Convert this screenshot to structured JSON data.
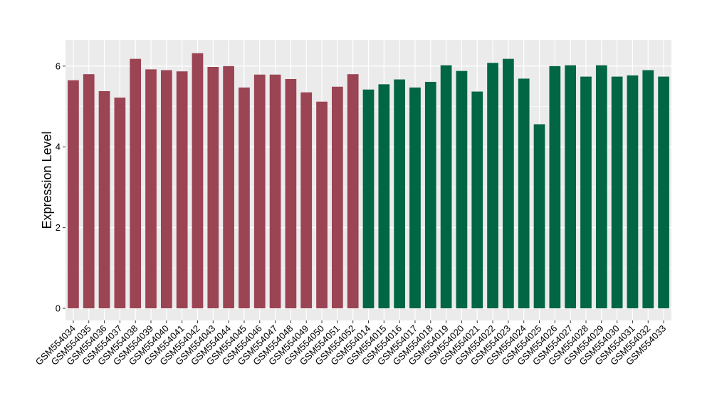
{
  "chart_data": {
    "type": "bar",
    "title": "",
    "xlabel": "",
    "ylabel": "Expression Level",
    "ylim": [
      -0.3,
      6.65
    ],
    "yticks": [
      0,
      2,
      4,
      6
    ],
    "grid": true,
    "legend": "none",
    "colors": {
      "group1": "#9b4453",
      "group2": "#006644",
      "panel_bg": "#ebebeb",
      "grid": "#ffffff"
    },
    "categories": [
      "GSM554034",
      "GSM554035",
      "GSM554036",
      "GSM554037",
      "GSM554038",
      "GSM554039",
      "GSM554040",
      "GSM554041",
      "GSM554042",
      "GSM554043",
      "GSM554044",
      "GSM554045",
      "GSM554046",
      "GSM554047",
      "GSM554048",
      "GSM554049",
      "GSM554050",
      "GSM554051",
      "GSM554052",
      "GSM554014",
      "GSM554015",
      "GSM554016",
      "GSM554017",
      "GSM554018",
      "GSM554019",
      "GSM554020",
      "GSM554021",
      "GSM554022",
      "GSM554023",
      "GSM554024",
      "GSM554025",
      "GSM554026",
      "GSM554027",
      "GSM554028",
      "GSM554029",
      "GSM554030",
      "GSM554031",
      "GSM554032",
      "GSM554033"
    ],
    "values": [
      5.65,
      5.8,
      5.38,
      5.22,
      6.18,
      5.92,
      5.9,
      5.87,
      6.32,
      5.98,
      6.0,
      5.47,
      5.79,
      5.79,
      5.68,
      5.35,
      5.12,
      5.49,
      5.8,
      5.42,
      5.55,
      5.67,
      5.47,
      5.61,
      6.02,
      5.88,
      5.37,
      6.08,
      6.18,
      5.69,
      4.56,
      6.0,
      6.02,
      5.74,
      6.02,
      5.74,
      5.77,
      5.9,
      5.74
    ],
    "groups": [
      1,
      1,
      1,
      1,
      1,
      1,
      1,
      1,
      1,
      1,
      1,
      1,
      1,
      1,
      1,
      1,
      1,
      1,
      1,
      2,
      2,
      2,
      2,
      2,
      2,
      2,
      2,
      2,
      2,
      2,
      2,
      2,
      2,
      2,
      2,
      2,
      2,
      2,
      2
    ]
  }
}
